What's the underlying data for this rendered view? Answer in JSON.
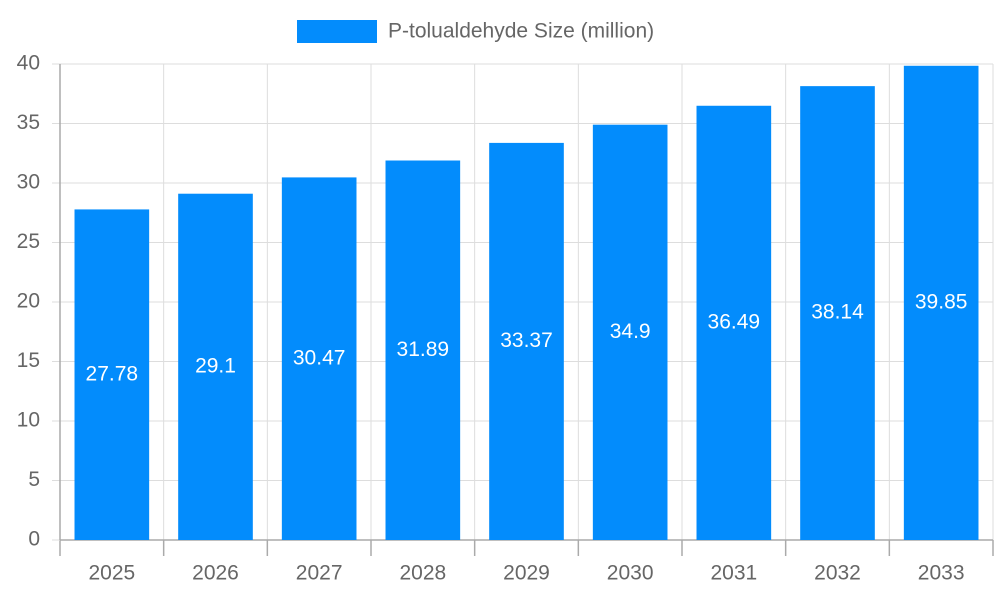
{
  "chart_data": {
    "type": "bar",
    "categories": [
      "2025",
      "2026",
      "2027",
      "2028",
      "2029",
      "2030",
      "2031",
      "2032",
      "2033"
    ],
    "series": [
      {
        "name": "P-tolualdehyde Size (million)",
        "color": "#038cfc",
        "values": [
          27.78,
          29.1,
          30.47,
          31.89,
          33.37,
          34.9,
          36.49,
          38.14,
          39.85
        ]
      }
    ],
    "ylim": [
      0,
      40
    ],
    "yticks": [
      0,
      5,
      10,
      15,
      20,
      25,
      30,
      35,
      40
    ],
    "grid": true,
    "legend": "top"
  }
}
